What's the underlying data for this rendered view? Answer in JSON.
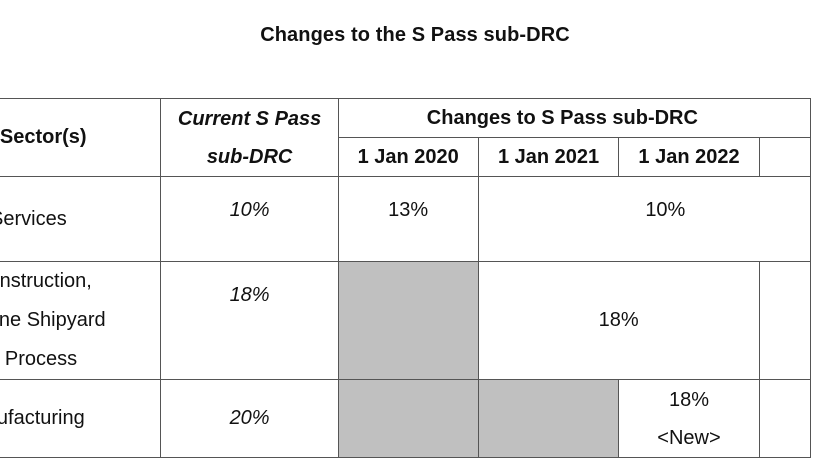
{
  "title": "Changes to the S Pass sub-DRC",
  "headers": {
    "sector": "Sector(s)",
    "current_line1": "Current S Pass",
    "current_line2": "sub-DRC",
    "changes": "Changes to S Pass sub-DRC",
    "dates": [
      "1 Jan 2020",
      "1 Jan 2021",
      "1 Jan 2022"
    ]
  },
  "rows": [
    {
      "sector_lines": [
        "Services"
      ],
      "current": "10%",
      "jan2020": "13%",
      "from2021": "10%"
    },
    {
      "sector_lines": [
        "Construction,",
        "Marine Shipyard",
        "and Process"
      ],
      "current": "18%",
      "from2021": "18%"
    },
    {
      "sector_lines": [
        "Manufacturing"
      ],
      "current": "20%",
      "jan2022_line1": "18%",
      "jan2022_line2": "<New>"
    }
  ]
}
